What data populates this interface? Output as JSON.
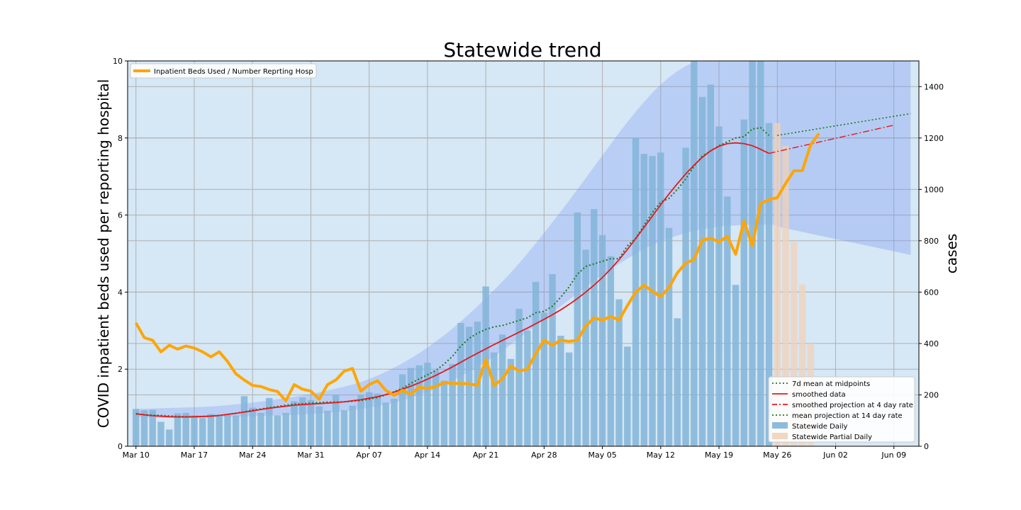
{
  "chart_data": {
    "type": "bar+line",
    "title": "Statewide trend",
    "xlabel": "",
    "ylabel_left": "COVID inpatient beds used per reporting hospital",
    "ylabel_right": "cases",
    "x_axis": {
      "start_date": "2020-03-10",
      "xlim_days": [
        -1,
        94
      ]
    },
    "x_ticks": [
      {
        "day": 0,
        "label": "Mar 10"
      },
      {
        "day": 7,
        "label": "Mar 17"
      },
      {
        "day": 14,
        "label": "Mar 24"
      },
      {
        "day": 21,
        "label": "Mar 31"
      },
      {
        "day": 28,
        "label": "Apr 07"
      },
      {
        "day": 35,
        "label": "Apr 14"
      },
      {
        "day": 42,
        "label": "Apr 21"
      },
      {
        "day": 49,
        "label": "Apr 28"
      },
      {
        "day": 56,
        "label": "May 05"
      },
      {
        "day": 63,
        "label": "May 12"
      },
      {
        "day": 70,
        "label": "May 19"
      },
      {
        "day": 77,
        "label": "May 26"
      },
      {
        "day": 84,
        "label": "Jun 02"
      },
      {
        "day": 91,
        "label": "Jun 09"
      }
    ],
    "ylim_left": [
      0,
      10
    ],
    "yticks_left": [
      0,
      2,
      4,
      6,
      8,
      10
    ],
    "ylim_right": [
      0,
      1500
    ],
    "yticks_right": [
      0,
      200,
      400,
      600,
      800,
      1000,
      1200,
      1400
    ],
    "grid": true,
    "colors": {
      "plot_bg": "#d6e7f5",
      "band": "#6f8ff2",
      "daily_bar": "#82b4d8",
      "partial_bar": "#f1d2b8",
      "beds_line": "#ffa500",
      "smoothed": "#e31a1c",
      "mean_dotted": "#1a7a1a",
      "grid": "#b0b0b0"
    },
    "legend_top": {
      "placement": "upper-left",
      "entries": [
        {
          "label": "Inpatient Beds Used / Number Reprting Hosp",
          "color": "#ffa500"
        }
      ]
    },
    "legend_bottom": {
      "placement": "lower-right",
      "entries": [
        {
          "label": "7d mean at midpoints",
          "color": "#1a7a1a",
          "style": "dotted"
        },
        {
          "label": "smoothed data",
          "color": "#e31a1c",
          "style": "solid"
        },
        {
          "label": "smoothed projection at 4 day rate",
          "color": "#e31a1c",
          "style": "dashdot"
        },
        {
          "label": "mean projection at 14 day rate",
          "color": "#1a7a1a",
          "style": "dotted"
        },
        {
          "label": "Statewide Daily",
          "color": "#82b4d8",
          "style": "patch"
        },
        {
          "label": "Statewide Partial Daily",
          "color": "#f1d2b8",
          "style": "patch"
        }
      ]
    },
    "series": [
      {
        "name": "Statewide Daily",
        "axis": "right",
        "kind": "bar",
        "start_day": 0,
        "values": [
          145,
          140,
          142,
          95,
          65,
          128,
          130,
          120,
          110,
          125,
          118,
          122,
          120,
          195,
          150,
          130,
          188,
          120,
          130,
          175,
          190,
          180,
          155,
          138,
          200,
          140,
          158,
          200,
          210,
          205,
          170,
          185,
          280,
          305,
          315,
          325,
          295,
          255,
          320,
          480,
          465,
          485,
          622,
          365,
          435,
          340,
          535,
          450,
          640,
          520,
          670,
          430,
          365,
          910,
          765,
          923,
          822,
          740,
          572,
          388,
          1200,
          1138,
          1130,
          1143,
          850,
          498,
          1162,
          1505,
          1360,
          1408,
          1245,
          972,
          628,
          1272,
          1502,
          1502,
          1258
        ]
      },
      {
        "name": "Statewide Partial Daily",
        "axis": "right",
        "kind": "bar",
        "start_day": 77,
        "values": [
          1258,
          1170,
          795,
          630,
          400
        ]
      },
      {
        "name": "Inpatient Beds Used / Number Reprting Hosp",
        "axis": "left",
        "kind": "line",
        "start_day": 0,
        "values": [
          3.2,
          2.82,
          2.75,
          2.45,
          2.62,
          2.52,
          2.6,
          2.55,
          2.45,
          2.32,
          2.45,
          2.2,
          1.88,
          1.72,
          1.58,
          1.55,
          1.47,
          1.42,
          1.18,
          1.6,
          1.48,
          1.43,
          1.22,
          1.6,
          1.72,
          1.95,
          2.02,
          1.43,
          1.6,
          1.7,
          1.45,
          1.32,
          1.45,
          1.35,
          1.53,
          1.5,
          1.55,
          1.65,
          1.63,
          1.63,
          1.62,
          1.58,
          2.25,
          1.58,
          1.75,
          2.08,
          1.95,
          2.0,
          2.4,
          2.75,
          2.62,
          2.75,
          2.72,
          2.75,
          3.12,
          3.33,
          3.27,
          3.37,
          3.27,
          3.65,
          4.0,
          4.18,
          4.02,
          3.88,
          4.12,
          4.5,
          4.75,
          4.85,
          5.35,
          5.4,
          5.3,
          5.45,
          4.98,
          5.85,
          5.2,
          6.3,
          6.4,
          6.45,
          6.82,
          7.15,
          7.15,
          7.82,
          8.12
        ],
        "linewidth": "thick"
      },
      {
        "name": "smoothed data",
        "axis": "right",
        "kind": "line",
        "start_day": 0,
        "values": [
          127,
          122,
          119,
          117,
          115,
          114,
          114,
          115,
          116,
          117,
          120,
          124,
          128,
          133,
          138,
          143,
          148,
          152,
          156,
          160,
          162,
          164,
          166,
          168,
          170,
          173,
          177,
          181,
          187,
          193,
          201,
          211,
          222,
          234,
          247,
          261,
          276,
          292,
          309,
          327,
          345,
          362,
          379,
          396,
          412,
          428,
          444,
          460,
          477,
          494,
          512,
          531,
          552,
          575,
          600,
          627,
          657,
          690,
          726,
          766,
          808,
          852,
          896,
          940,
          982,
          1022,
          1060,
          1094,
          1125,
          1150,
          1168,
          1178,
          1181,
          1178,
          1170,
          1156,
          1140
        ]
      },
      {
        "name": "smoothed projection at 4 day rate",
        "axis": "right",
        "kind": "line",
        "start_day": 76,
        "values": [
          1140,
          1250
        ]
      },
      {
        "name": "7d mean at midpoints",
        "axis": "right",
        "kind": "line",
        "start_day": 0,
        "values": [
          125,
          123,
          121,
          120,
          118,
          116,
          115,
          115,
          116,
          118,
          120,
          124,
          129,
          134,
          140,
          145,
          150,
          155,
          160,
          164,
          166,
          168,
          170,
          172,
          172,
          173,
          175,
          178,
          183,
          190,
          200,
          212,
          226,
          245,
          262,
          278,
          295,
          320,
          350,
          390,
          420,
          440,
          455,
          465,
          470,
          480,
          490,
          500,
          520,
          525,
          545,
          580,
          620,
          670,
          700,
          710,
          720,
          730,
          730,
          780,
          810,
          860,
          910,
          950,
          965,
          1000,
          1040,
          1090,
          1130,
          1150,
          1170,
          1185,
          1200,
          1205,
          1235,
          1240,
          1210
        ]
      },
      {
        "name": "mean projection at 14 day rate",
        "axis": "right",
        "kind": "line",
        "start_day": 77,
        "values": [
          1210,
          1295
        ],
        "end_day": 93
      }
    ],
    "confidence_band": {
      "axis": "right",
      "start_day": 0,
      "lower": [
        115,
        113,
        112,
        110,
        110,
        110,
        110,
        110,
        110,
        112,
        113,
        114,
        115,
        116,
        117,
        118,
        119,
        120,
        121,
        122,
        124,
        126,
        128,
        130,
        133,
        136,
        140,
        145,
        150,
        156,
        162,
        170,
        178,
        188,
        200,
        212,
        226,
        240,
        256,
        272,
        290,
        308,
        328,
        350,
        372,
        396,
        420,
        445,
        470,
        495,
        520,
        545,
        570,
        595,
        620,
        645,
        668,
        690,
        710,
        730,
        750,
        768,
        784,
        798,
        810,
        820,
        830,
        838,
        845,
        850,
        855,
        858,
        860,
        861,
        862,
        862,
        862,
        862
      ],
      "upper": [
        145,
        146,
        147,
        148,
        149,
        150,
        151,
        152,
        153,
        155,
        157,
        160,
        163,
        166,
        170,
        174,
        178,
        183,
        188,
        193,
        198,
        204,
        210,
        217,
        224,
        232,
        240,
        250,
        262,
        275,
        290,
        306,
        323,
        342,
        362,
        384,
        408,
        432,
        458,
        486,
        515,
        545,
        576,
        608,
        641,
        676,
        712,
        750,
        790,
        830,
        872,
        914,
        956,
        1000,
        1044,
        1088,
        1132,
        1176,
        1220,
        1262,
        1302,
        1340,
        1376,
        1408,
        1436,
        1460,
        1480,
        1495,
        1500,
        1500,
        1500,
        1500,
        1500,
        1500,
        1500,
        1500,
        1500,
        1500
      ],
      "projection": {
        "start_day": 77,
        "end_day": 93,
        "lower_start": 855,
        "lower_end": 745,
        "upper": 1500
      }
    }
  }
}
